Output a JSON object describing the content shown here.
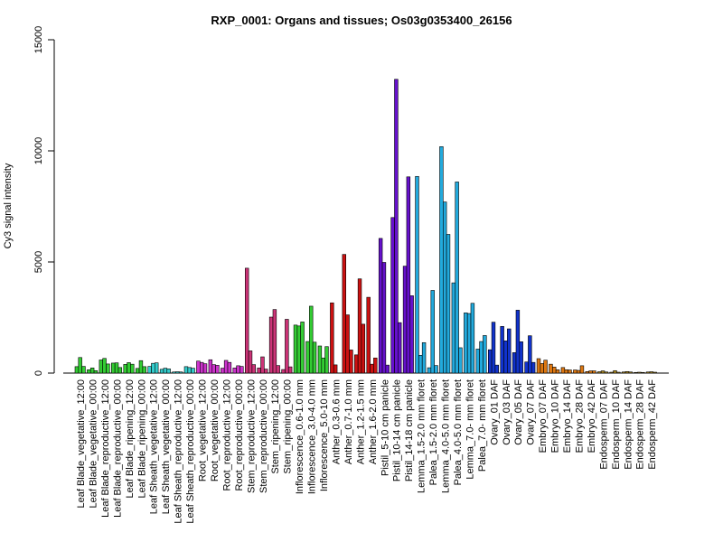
{
  "chart_data": {
    "type": "bar",
    "title": "RXP_0001: Organs and tissues; Os03g0353400_26156",
    "xlabel": "",
    "ylabel": "Cy3 signal intensity",
    "ylim": [
      0,
      15000
    ],
    "yticks": [
      0,
      5000,
      10000,
      15000
    ],
    "grid": false,
    "categories": [
      "Leaf Blade_vegetative_12:00",
      "Leaf Blade_vegetative_00:00",
      "Leaf Blade_reproductive_12:00",
      "Leaf Blade_reproductive_00:00",
      "Leaf Blade_ripening_12:00",
      "Leaf Blade_ripening_00:00",
      "Leaf Sheath_vegetative_12:00",
      "Leaf Sheath_vegetative_00:00",
      "Leaf Sheath_reproductive_12:00",
      "Leaf Sheath_reproductive_00:00",
      "Root_vegetative_12:00",
      "Root_vegetative_00:00",
      "Root_reproductive_12:00",
      "Root_reproductive_00:00",
      "Stem_reproductive_12:00",
      "Stem_reproductive_00:00",
      "Stem_ripening_12:00",
      "Stem_ripening_00:00",
      "Inflorescence_0.6-1.0 mm",
      "Inflorescence_3.0-4.0 mm",
      "Inflorescence_5.0-10 mm",
      "Anther_0.3-0.6 mm",
      "Anther_0.7-1.0 mm",
      "Anther_1.2-1.5 mm",
      "Anther_1.6-2.0 mm",
      "Pistil_5-10 cm panicle",
      "Pistil_10-14 cm panicle",
      "Pistil_14-18 cm panicle",
      "Lemma_1.5-2.0 mm floret",
      "Palea_1.5-2.0 mm floret",
      "Lemma_4.0-5.0 mm floret",
      "Palea_4.0-5.0 mm floret",
      "Lemma_7.0- mm floret",
      "Palea_7.0- mm floret",
      "Ovary_01 DAF",
      "Ovary_03 DAF",
      "Ovary_05 DAF",
      "Ovary_07 DAF",
      "Embryo_07 DAF",
      "Embryo_10 DAF",
      "Embryo_14 DAF",
      "Embryo_28 DAF",
      "Embryo_42 DAF",
      "Endosperm_07 DAF",
      "Endosperm_10 DAF",
      "Endosperm_14 DAF",
      "Endosperm_28 DAF",
      "Endosperm_42 DAF"
    ],
    "groups": [
      {
        "color": "#33cc33",
        "values": [
          290,
          700,
          300
        ]
      },
      {
        "color": "#33cc33",
        "values": [
          150,
          230,
          110
        ]
      },
      {
        "color": "#33cc33",
        "values": [
          590,
          660,
          410
        ]
      },
      {
        "color": "#33cc33",
        "values": [
          450,
          460,
          250
        ]
      },
      {
        "color": "#33cc33",
        "values": [
          390,
          470,
          400
        ]
      },
      {
        "color": "#33cc33",
        "values": [
          210,
          560,
          290
        ]
      },
      {
        "color": "#33cccc",
        "values": [
          300,
          440,
          460
        ]
      },
      {
        "color": "#33cccc",
        "values": [
          170,
          220,
          190
        ]
      },
      {
        "color": "#33cccc",
        "values": [
          50,
          60,
          50
        ]
      },
      {
        "color": "#33cccc",
        "values": [
          290,
          250,
          220
        ]
      },
      {
        "color": "#cc33cc",
        "values": [
          540,
          480,
          420
        ]
      },
      {
        "color": "#cc33cc",
        "values": [
          600,
          380,
          350
        ]
      },
      {
        "color": "#cc33cc",
        "values": [
          220,
          570,
          480
        ]
      },
      {
        "color": "#cc33cc",
        "values": [
          230,
          330,
          300
        ]
      },
      {
        "color": "#cc3377",
        "values": [
          4720,
          1000,
          380
        ]
      },
      {
        "color": "#cc3377",
        "values": [
          230,
          730,
          180
        ]
      },
      {
        "color": "#cc3377",
        "values": [
          2520,
          2860,
          340
        ]
      },
      {
        "color": "#cc3377",
        "values": [
          160,
          2420,
          280
        ]
      },
      {
        "color": "#33cc33",
        "values": [
          2160,
          2120,
          2300
        ]
      },
      {
        "color": "#33cc33",
        "values": [
          1420,
          3010,
          1390
        ]
      },
      {
        "color": "#33cc33",
        "values": [
          1220,
          680,
          1190
        ]
      },
      {
        "color": "#cc1111",
        "values": [
          3160,
          370
        ]
      },
      {
        "color": "#cc1111",
        "values": [
          5340,
          2620,
          1040
        ]
      },
      {
        "color": "#cc1111",
        "values": [
          820,
          4240,
          2200
        ]
      },
      {
        "color": "#cc1111",
        "values": [
          3410,
          400,
          680
        ]
      },
      {
        "color": "#6611cc",
        "values": [
          6060,
          4980,
          360
        ]
      },
      {
        "color": "#6611cc",
        "values": [
          7000,
          13220,
          2270
        ]
      },
      {
        "color": "#6611cc",
        "values": [
          4810,
          8830,
          3480
        ]
      },
      {
        "color": "#22aadd",
        "values": [
          8850,
          800,
          1370
        ]
      },
      {
        "color": "#22aadd",
        "values": [
          240,
          3720,
          340
        ]
      },
      {
        "color": "#22aadd",
        "values": [
          10190,
          7700,
          6240
        ]
      },
      {
        "color": "#22aadd",
        "values": [
          4060,
          8600,
          1140
        ]
      },
      {
        "color": "#22aadd",
        "values": [
          2710,
          2680,
          3140
        ]
      },
      {
        "color": "#22aadd",
        "values": [
          1080,
          1420,
          1690
        ]
      },
      {
        "color": "#1133cc",
        "values": [
          1050,
          2290,
          360
        ]
      },
      {
        "color": "#1133cc",
        "values": [
          2100,
          1450,
          1990
        ]
      },
      {
        "color": "#1133cc",
        "values": [
          920,
          2830,
          1410
        ]
      },
      {
        "color": "#1133cc",
        "values": [
          500,
          1680,
          480
        ]
      },
      {
        "color": "#dd7711",
        "values": [
          650,
          430,
          580
        ]
      },
      {
        "color": "#dd7711",
        "values": [
          400,
          270,
          150
        ]
      },
      {
        "color": "#dd7711",
        "values": [
          250,
          150,
          140
        ]
      },
      {
        "color": "#dd7711",
        "values": [
          140,
          120,
          330
        ]
      },
      {
        "color": "#dd7711",
        "values": [
          70,
          100,
          100
        ]
      },
      {
        "color": "#aa8822",
        "values": [
          60,
          100,
          50
        ]
      },
      {
        "color": "#aa8822",
        "values": [
          40,
          110,
          40
        ]
      },
      {
        "color": "#aa8822",
        "values": [
          50,
          70,
          50
        ]
      },
      {
        "color": "#aa8822",
        "values": [
          30,
          40,
          30
        ]
      },
      {
        "color": "#aa8822",
        "values": [
          50,
          60,
          40
        ]
      }
    ]
  }
}
